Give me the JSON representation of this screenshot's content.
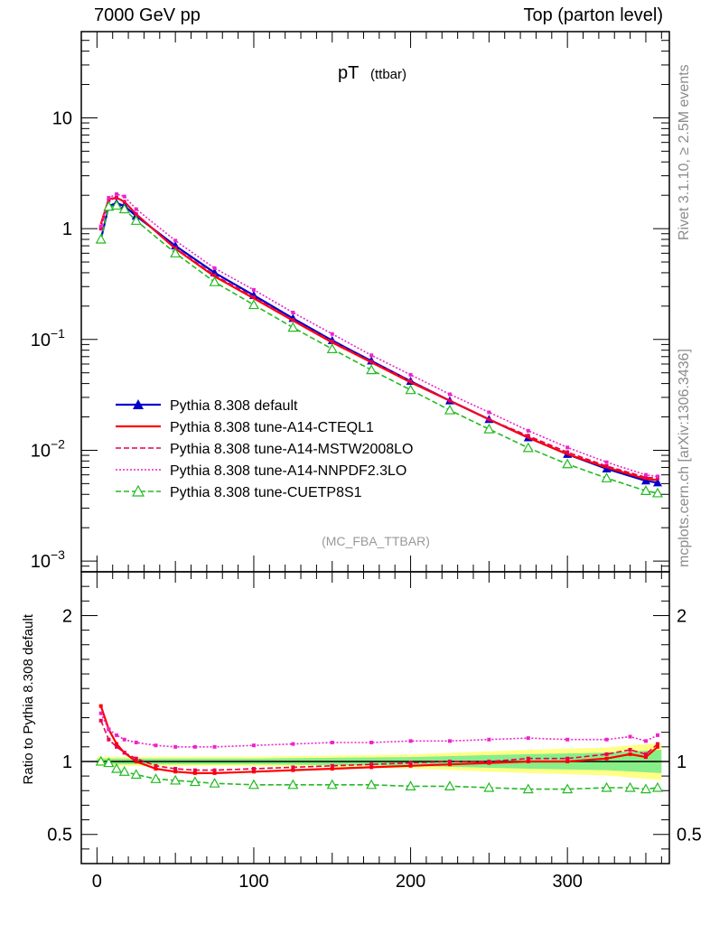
{
  "header": {
    "left": "7000 GeV pp",
    "right": "Top (parton level)"
  },
  "side": {
    "rivet": "Rivet 3.1.10, ≥ 2.5M events",
    "mcplots": "mcplots.cern.ch [arXiv:1306.3436]"
  },
  "chart_data": {
    "type": "line",
    "title": "pT",
    "title_sub": "(ttbar)",
    "analysis_label": "(MC_FBA_TTBAR)",
    "xlim": [
      -10,
      365
    ],
    "ylim_main": [
      0.0008,
      60
    ],
    "ylog": true,
    "ylim_ratio": [
      0.3,
      2.3
    ],
    "ylabel_ratio": "Ratio to Pythia 8.308 default",
    "x_ticks": [
      0,
      100,
      200,
      300
    ],
    "y_ticks_main": [
      "10",
      "1",
      "10−1",
      "10−2",
      "10−3"
    ],
    "y_ticks_ratio": [
      "2",
      "1",
      "0.5"
    ],
    "legend_position": "lower-left",
    "series": [
      {
        "name": "Pythia 8.308 default",
        "color": "#0000cc",
        "style": "solid",
        "marker": "filled-triangle",
        "points": [
          [
            2.5,
            0.8
          ],
          [
            7.5,
            1.6
          ],
          [
            12.5,
            1.7
          ],
          [
            17.5,
            1.6
          ],
          [
            25,
            1.3
          ],
          [
            50,
            0.7
          ],
          [
            75,
            0.4
          ],
          [
            100,
            0.25
          ],
          [
            125,
            0.155
          ],
          [
            150,
            0.098
          ],
          [
            175,
            0.064
          ],
          [
            200,
            0.042
          ],
          [
            225,
            0.028
          ],
          [
            250,
            0.019
          ],
          [
            275,
            0.013
          ],
          [
            300,
            0.0092
          ],
          [
            325,
            0.0068
          ],
          [
            350,
            0.0053
          ],
          [
            357.5,
            0.0051
          ]
        ]
      },
      {
        "name": "Pythia 8.308 tune-A14-CTEQL1",
        "color": "#ff0000",
        "style": "solid",
        "marker": "none",
        "points": [
          [
            2.5,
            1.1
          ],
          [
            7.5,
            1.85
          ],
          [
            12.5,
            1.9
          ],
          [
            17.5,
            1.75
          ],
          [
            25,
            1.35
          ],
          [
            50,
            0.66
          ],
          [
            75,
            0.37
          ],
          [
            100,
            0.235
          ],
          [
            125,
            0.148
          ],
          [
            150,
            0.094
          ],
          [
            175,
            0.062
          ],
          [
            200,
            0.041
          ],
          [
            225,
            0.028
          ],
          [
            250,
            0.019
          ],
          [
            275,
            0.013
          ],
          [
            300,
            0.0092
          ],
          [
            325,
            0.007
          ],
          [
            350,
            0.0055
          ],
          [
            357.5,
            0.0054
          ]
        ]
      },
      {
        "name": "Pythia 8.308 tune-A14-MSTW2008LO",
        "color": "#e8004c",
        "style": "dashed",
        "marker": "small-square",
        "points": [
          [
            2.5,
            1.0
          ],
          [
            7.5,
            1.8
          ],
          [
            12.5,
            1.9
          ],
          [
            17.5,
            1.75
          ],
          [
            25,
            1.35
          ],
          [
            50,
            0.67
          ],
          [
            75,
            0.38
          ],
          [
            100,
            0.24
          ],
          [
            125,
            0.15
          ],
          [
            150,
            0.096
          ],
          [
            175,
            0.063
          ],
          [
            200,
            0.042
          ],
          [
            225,
            0.028
          ],
          [
            250,
            0.019
          ],
          [
            275,
            0.0135
          ],
          [
            300,
            0.0096
          ],
          [
            325,
            0.0072
          ],
          [
            350,
            0.0057
          ],
          [
            357.5,
            0.0056
          ]
        ]
      },
      {
        "name": "Pythia 8.308 tune-A14-NNPDF2.3LO",
        "color": "#ee22cc",
        "style": "dotted",
        "marker": "small-square",
        "points": [
          [
            2.5,
            1.05
          ],
          [
            7.5,
            1.9
          ],
          [
            12.5,
            2.05
          ],
          [
            17.5,
            1.95
          ],
          [
            25,
            1.5
          ],
          [
            50,
            0.78
          ],
          [
            75,
            0.44
          ],
          [
            100,
            0.28
          ],
          [
            125,
            0.175
          ],
          [
            150,
            0.112
          ],
          [
            175,
            0.072
          ],
          [
            200,
            0.048
          ],
          [
            225,
            0.032
          ],
          [
            250,
            0.022
          ],
          [
            275,
            0.015
          ],
          [
            300,
            0.0106
          ],
          [
            325,
            0.0078
          ],
          [
            350,
            0.006
          ],
          [
            357.5,
            0.0058
          ]
        ]
      },
      {
        "name": "Pythia 8.308 tune-CUETP8S1",
        "color": "#22bb22",
        "style": "dashed",
        "marker": "open-triangle",
        "points": [
          [
            2.5,
            0.8
          ],
          [
            7.5,
            1.58
          ],
          [
            12.5,
            1.62
          ],
          [
            17.5,
            1.5
          ],
          [
            25,
            1.18
          ],
          [
            50,
            0.6
          ],
          [
            75,
            0.33
          ],
          [
            100,
            0.205
          ],
          [
            125,
            0.128
          ],
          [
            150,
            0.082
          ],
          [
            175,
            0.053
          ],
          [
            200,
            0.035
          ],
          [
            225,
            0.023
          ],
          [
            250,
            0.0155
          ],
          [
            275,
            0.0105
          ],
          [
            300,
            0.0075
          ],
          [
            325,
            0.0056
          ],
          [
            350,
            0.0043
          ],
          [
            357.5,
            0.0041
          ]
        ]
      }
    ],
    "ratio_series": [
      {
        "name": "Pythia 8.308 tune-A14-CTEQL1",
        "color": "#ff0000",
        "style": "solid",
        "points": [
          [
            2.5,
            1.38
          ],
          [
            7.5,
            1.22
          ],
          [
            12.5,
            1.12
          ],
          [
            17.5,
            1.06
          ],
          [
            25,
            1.0
          ],
          [
            37.5,
            0.95
          ],
          [
            50,
            0.93
          ],
          [
            62.5,
            0.92
          ],
          [
            75,
            0.92
          ],
          [
            100,
            0.93
          ],
          [
            125,
            0.94
          ],
          [
            150,
            0.95
          ],
          [
            175,
            0.96
          ],
          [
            200,
            0.97
          ],
          [
            225,
            0.98
          ],
          [
            250,
            0.99
          ],
          [
            275,
            1.0
          ],
          [
            300,
            1.0
          ],
          [
            325,
            1.02
          ],
          [
            340,
            1.05
          ],
          [
            350,
            1.03
          ],
          [
            357.5,
            1.1
          ]
        ]
      },
      {
        "name": "Pythia 8.308 tune-A14-MSTW2008LO",
        "color": "#e8004c",
        "style": "dashed",
        "points": [
          [
            2.5,
            1.28
          ],
          [
            7.5,
            1.15
          ],
          [
            12.5,
            1.1
          ],
          [
            17.5,
            1.06
          ],
          [
            25,
            1.02
          ],
          [
            37.5,
            0.97
          ],
          [
            50,
            0.95
          ],
          [
            62.5,
            0.94
          ],
          [
            75,
            0.94
          ],
          [
            100,
            0.95
          ],
          [
            125,
            0.96
          ],
          [
            150,
            0.97
          ],
          [
            175,
            0.98
          ],
          [
            200,
            0.99
          ],
          [
            225,
            1.0
          ],
          [
            250,
            1.0
          ],
          [
            275,
            1.02
          ],
          [
            300,
            1.02
          ],
          [
            325,
            1.05
          ],
          [
            340,
            1.08
          ],
          [
            350,
            1.05
          ],
          [
            357.5,
            1.12
          ]
        ]
      },
      {
        "name": "Pythia 8.308 tune-A14-NNPDF2.3LO",
        "color": "#ee22cc",
        "style": "dotted",
        "points": [
          [
            2.5,
            1.33
          ],
          [
            7.5,
            1.22
          ],
          [
            12.5,
            1.18
          ],
          [
            17.5,
            1.15
          ],
          [
            25,
            1.13
          ],
          [
            37.5,
            1.11
          ],
          [
            50,
            1.1
          ],
          [
            62.5,
            1.1
          ],
          [
            75,
            1.1
          ],
          [
            100,
            1.11
          ],
          [
            125,
            1.12
          ],
          [
            150,
            1.13
          ],
          [
            175,
            1.13
          ],
          [
            200,
            1.14
          ],
          [
            225,
            1.14
          ],
          [
            250,
            1.15
          ],
          [
            275,
            1.16
          ],
          [
            300,
            1.15
          ],
          [
            325,
            1.15
          ],
          [
            340,
            1.17
          ],
          [
            350,
            1.14
          ],
          [
            357.5,
            1.18
          ]
        ]
      },
      {
        "name": "Pythia 8.308 tune-CUETP8S1",
        "color": "#22bb22",
        "style": "dashed",
        "points": [
          [
            2.5,
            1.0
          ],
          [
            7.5,
            0.99
          ],
          [
            12.5,
            0.95
          ],
          [
            17.5,
            0.93
          ],
          [
            25,
            0.91
          ],
          [
            37.5,
            0.88
          ],
          [
            50,
            0.87
          ],
          [
            62.5,
            0.86
          ],
          [
            75,
            0.85
          ],
          [
            100,
            0.84
          ],
          [
            125,
            0.84
          ],
          [
            150,
            0.84
          ],
          [
            175,
            0.84
          ],
          [
            200,
            0.83
          ],
          [
            225,
            0.83
          ],
          [
            250,
            0.82
          ],
          [
            275,
            0.81
          ],
          [
            300,
            0.81
          ],
          [
            325,
            0.82
          ],
          [
            340,
            0.82
          ],
          [
            350,
            0.81
          ],
          [
            357.5,
            0.82
          ]
        ]
      }
    ]
  }
}
